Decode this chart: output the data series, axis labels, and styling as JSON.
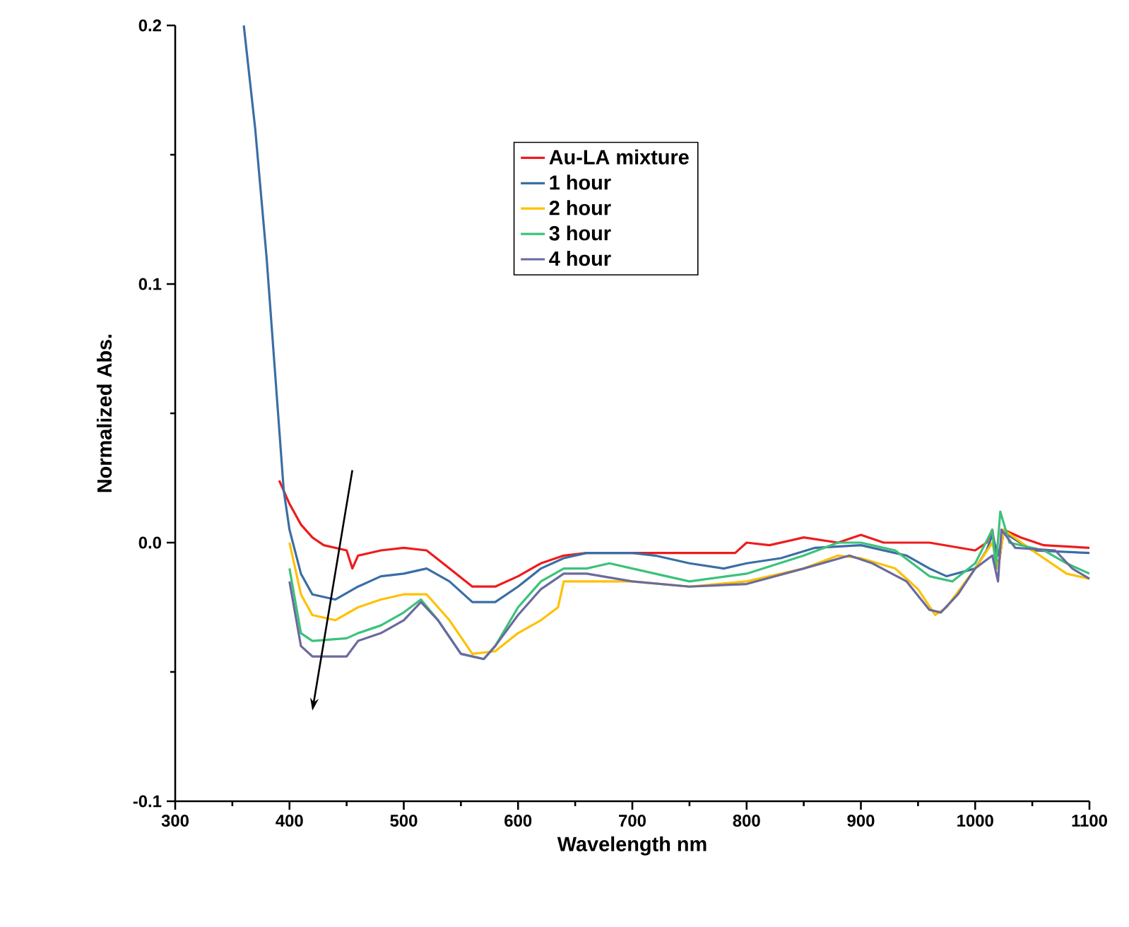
{
  "chart_data": {
    "type": "line",
    "xlabel": "Wavelength nm",
    "ylabel": "Normalized Abs.",
    "xlim": [
      300,
      1100
    ],
    "ylim": [
      -0.1,
      0.2
    ],
    "xticks": [
      300,
      400,
      500,
      600,
      700,
      800,
      900,
      1000,
      1100
    ],
    "yticks": [
      {
        "value": -0.1,
        "label": "-0.1"
      },
      {
        "value": 0,
        "label": "0.0"
      },
      {
        "value": 0.1,
        "label": "0.1"
      },
      {
        "value": 0.2,
        "label": "0.2"
      }
    ],
    "legend": "top right",
    "line_style": "solid",
    "series": [
      {
        "name": "Au-LA mixture",
        "color": "#ee1c1c",
        "x": [
          391,
          400,
          410,
          420,
          430,
          450,
          455,
          460,
          480,
          500,
          520,
          540,
          560,
          580,
          600,
          620,
          640,
          660,
          700,
          750,
          790,
          800,
          820,
          850,
          880,
          900,
          920,
          960,
          1000,
          1010,
          1015,
          1020,
          1025,
          1040,
          1060,
          1100
        ],
        "values": [
          0.024,
          0.015,
          0.007,
          0.002,
          -0.001,
          -0.003,
          -0.01,
          -0.005,
          -0.003,
          -0.002,
          -0.003,
          -0.01,
          -0.017,
          -0.017,
          -0.013,
          -0.008,
          -0.005,
          -0.004,
          -0.004,
          -0.004,
          -0.004,
          0,
          -0.001,
          0.002,
          0,
          0.003,
          0,
          0,
          -0.003,
          0,
          0.005,
          -0.01,
          0.005,
          0.002,
          -0.001,
          -0.002
        ]
      },
      {
        "name": "1 hour",
        "color": "#3a6ea5",
        "x": [
          360,
          370,
          380,
          385,
          390,
          395,
          400,
          410,
          420,
          440,
          460,
          480,
          500,
          520,
          540,
          560,
          580,
          600,
          620,
          640,
          660,
          700,
          720,
          750,
          780,
          800,
          830,
          860,
          900,
          940,
          960,
          975,
          1000,
          1010,
          1015,
          1020,
          1025,
          1050,
          1100
        ],
        "values": [
          0.2,
          0.16,
          0.11,
          0.08,
          0.05,
          0.02,
          0.005,
          -0.012,
          -0.02,
          -0.022,
          -0.017,
          -0.013,
          -0.012,
          -0.01,
          -0.015,
          -0.023,
          -0.023,
          -0.017,
          -0.01,
          -0.006,
          -0.004,
          -0.004,
          -0.005,
          -0.008,
          -0.01,
          -0.008,
          -0.006,
          -0.002,
          -0.001,
          -0.005,
          -0.01,
          -0.013,
          -0.01,
          -0.003,
          0.003,
          -0.005,
          0.004,
          -0.003,
          -0.004
        ]
      },
      {
        "name": "2 hour",
        "color": "#ffc000",
        "x": [
          400,
          410,
          420,
          440,
          460,
          480,
          500,
          520,
          540,
          560,
          580,
          600,
          620,
          635,
          640,
          700,
          750,
          800,
          850,
          880,
          900,
          930,
          950,
          965,
          975,
          1000,
          1015,
          1020,
          1025,
          1050,
          1080,
          1100
        ],
        "values": [
          0.0,
          -0.02,
          -0.028,
          -0.03,
          -0.025,
          -0.022,
          -0.02,
          -0.02,
          -0.03,
          -0.043,
          -0.042,
          -0.035,
          -0.03,
          -0.025,
          -0.015,
          -0.015,
          -0.017,
          -0.015,
          -0.01,
          -0.005,
          -0.006,
          -0.01,
          -0.018,
          -0.028,
          -0.025,
          -0.01,
          0.0,
          -0.01,
          0.005,
          -0.003,
          -0.012,
          -0.014
        ]
      },
      {
        "name": "3 hour",
        "color": "#3cc27a",
        "x": [
          400,
          410,
          420,
          450,
          460,
          480,
          500,
          515,
          530,
          550,
          570,
          580,
          600,
          620,
          640,
          660,
          680,
          700,
          750,
          800,
          850,
          880,
          900,
          930,
          960,
          980,
          1000,
          1015,
          1018,
          1022,
          1030,
          1060,
          1080,
          1100
        ],
        "values": [
          -0.01,
          -0.035,
          -0.038,
          -0.037,
          -0.035,
          -0.032,
          -0.027,
          -0.022,
          -0.03,
          -0.043,
          -0.045,
          -0.04,
          -0.025,
          -0.015,
          -0.01,
          -0.01,
          -0.008,
          -0.01,
          -0.015,
          -0.012,
          -0.005,
          0.0,
          0.0,
          -0.003,
          -0.013,
          -0.015,
          -0.008,
          0.005,
          -0.01,
          0.012,
          0.0,
          -0.003,
          -0.008,
          -0.012
        ]
      },
      {
        "name": "4 hour",
        "color": "#6a6a9f",
        "x": [
          400,
          410,
          420,
          450,
          460,
          480,
          500,
          515,
          530,
          550,
          570,
          580,
          600,
          620,
          640,
          660,
          700,
          750,
          800,
          850,
          890,
          910,
          940,
          960,
          970,
          985,
          1000,
          1015,
          1020,
          1023,
          1035,
          1070,
          1085,
          1100
        ],
        "values": [
          -0.015,
          -0.04,
          -0.044,
          -0.044,
          -0.038,
          -0.035,
          -0.03,
          -0.023,
          -0.03,
          -0.043,
          -0.045,
          -0.04,
          -0.028,
          -0.018,
          -0.012,
          -0.012,
          -0.015,
          -0.017,
          -0.016,
          -0.01,
          -0.005,
          -0.008,
          -0.015,
          -0.026,
          -0.027,
          -0.02,
          -0.01,
          -0.005,
          -0.015,
          0.005,
          -0.002,
          -0.003,
          -0.01,
          -0.014
        ]
      }
    ]
  }
}
